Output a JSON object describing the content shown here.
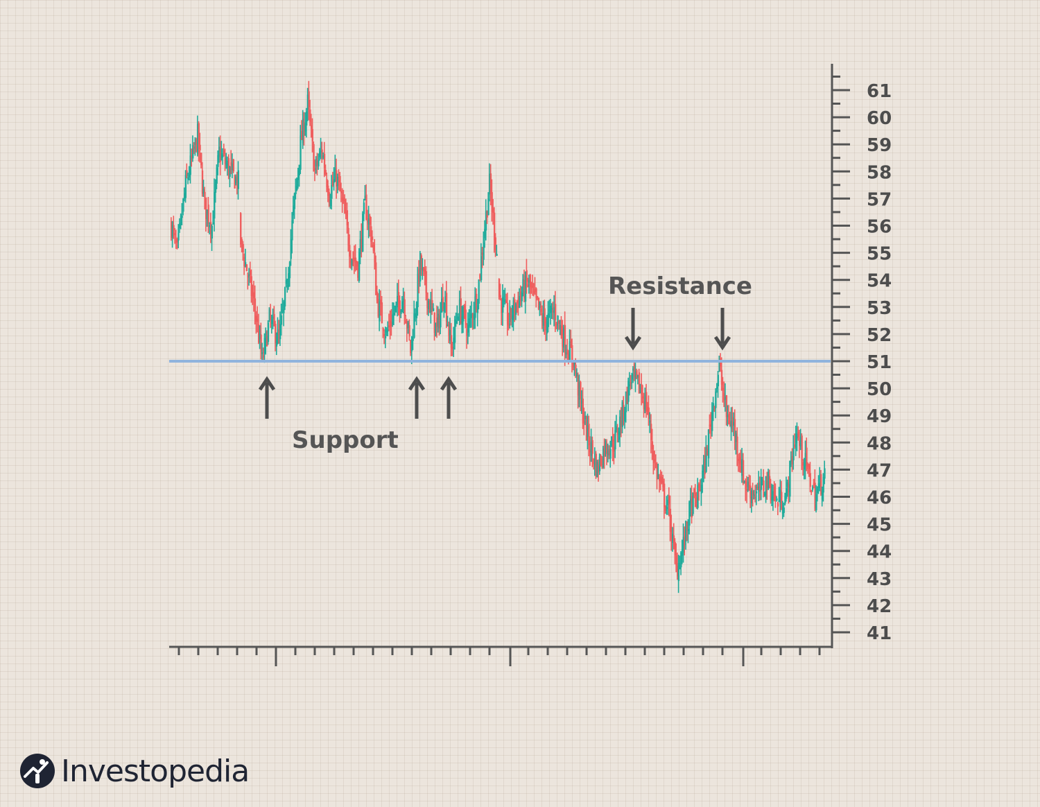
{
  "chart_data": {
    "type": "candlestick",
    "ylim": [
      40.5,
      61.5
    ],
    "yticks": [
      61,
      60,
      59,
      58,
      57,
      56,
      55,
      54,
      53,
      52,
      51,
      50,
      49,
      48,
      47,
      46,
      45,
      44,
      43,
      42,
      41
    ],
    "grid": true,
    "colors": {
      "up": "#1fab9b",
      "down": "#ef5d5d",
      "line": "#8fb3dd",
      "axis": "#555555",
      "arrow": "#4d4d4d"
    },
    "support_resistance_level": 51,
    "anchors": [
      [
        0,
        56.0
      ],
      [
        5,
        55.0
      ],
      [
        12,
        57.5
      ],
      [
        22,
        59.3
      ],
      [
        28,
        56.7
      ],
      [
        34,
        56.0
      ],
      [
        40,
        58.7
      ],
      [
        52,
        57.8
      ],
      [
        56,
        57.6
      ],
      [
        58,
        55.4
      ],
      [
        63,
        54.4
      ],
      [
        70,
        52.9
      ],
      [
        76,
        51.0
      ],
      [
        82,
        52.5
      ],
      [
        90,
        51.8
      ],
      [
        96,
        53.6
      ],
      [
        102,
        56.5
      ],
      [
        108,
        59.0
      ],
      [
        114,
        60.5
      ],
      [
        120,
        58.0
      ],
      [
        126,
        58.8
      ],
      [
        132,
        57.2
      ],
      [
        138,
        57.8
      ],
      [
        144,
        56.6
      ],
      [
        150,
        55.0
      ],
      [
        156,
        54.5
      ],
      [
        162,
        56.8
      ],
      [
        168,
        55.5
      ],
      [
        172,
        53.2
      ],
      [
        180,
        52.0
      ],
      [
        186,
        52.8
      ],
      [
        194,
        53.4
      ],
      [
        200,
        51.4
      ],
      [
        208,
        54.6
      ],
      [
        214,
        53.4
      ],
      [
        222,
        52.1
      ],
      [
        228,
        53.6
      ],
      [
        234,
        51.4
      ],
      [
        240,
        53.0
      ],
      [
        248,
        52.2
      ],
      [
        256,
        53.5
      ],
      [
        262,
        56.0
      ],
      [
        266,
        57.5
      ],
      [
        272,
        55.0
      ],
      [
        274,
        53.4
      ],
      [
        282,
        52.5
      ],
      [
        290,
        53.3
      ],
      [
        298,
        53.9
      ],
      [
        304,
        53.2
      ],
      [
        312,
        52.4
      ],
      [
        320,
        52.9
      ],
      [
        330,
        51.6
      ],
      [
        336,
        51.1
      ],
      [
        342,
        49.5
      ],
      [
        348,
        48.2
      ],
      [
        356,
        47.0
      ],
      [
        362,
        47.8
      ],
      [
        370,
        48.0
      ],
      [
        378,
        49.2
      ],
      [
        384,
        50.4
      ],
      [
        392,
        50.0
      ],
      [
        398,
        49.2
      ],
      [
        404,
        47.2
      ],
      [
        410,
        46.2
      ],
      [
        416,
        45.4
      ],
      [
        422,
        43.3
      ],
      [
        428,
        44.2
      ],
      [
        434,
        45.6
      ],
      [
        440,
        46.0
      ],
      [
        446,
        47.2
      ],
      [
        452,
        49.2
      ],
      [
        458,
        50.8
      ],
      [
        464,
        49.0
      ],
      [
        470,
        48.6
      ],
      [
        476,
        47.2
      ],
      [
        480,
        46.4
      ],
      [
        490,
        46.1
      ],
      [
        498,
        46.6
      ],
      [
        506,
        45.8
      ],
      [
        514,
        46.0
      ],
      [
        522,
        48.4
      ],
      [
        530,
        47.2
      ],
      [
        538,
        46.0
      ],
      [
        546,
        46.8
      ]
    ],
    "x_major_ticks": 3,
    "annotations": [
      {
        "text": "Support"
      },
      {
        "text": "Resistance"
      }
    ]
  },
  "brand": {
    "name": "Investopedia"
  },
  "icons": {
    "support_arrow": "arrow-up-icon",
    "resistance_arrow": "arrow-down-icon",
    "logo": "investopedia-logo-icon"
  }
}
